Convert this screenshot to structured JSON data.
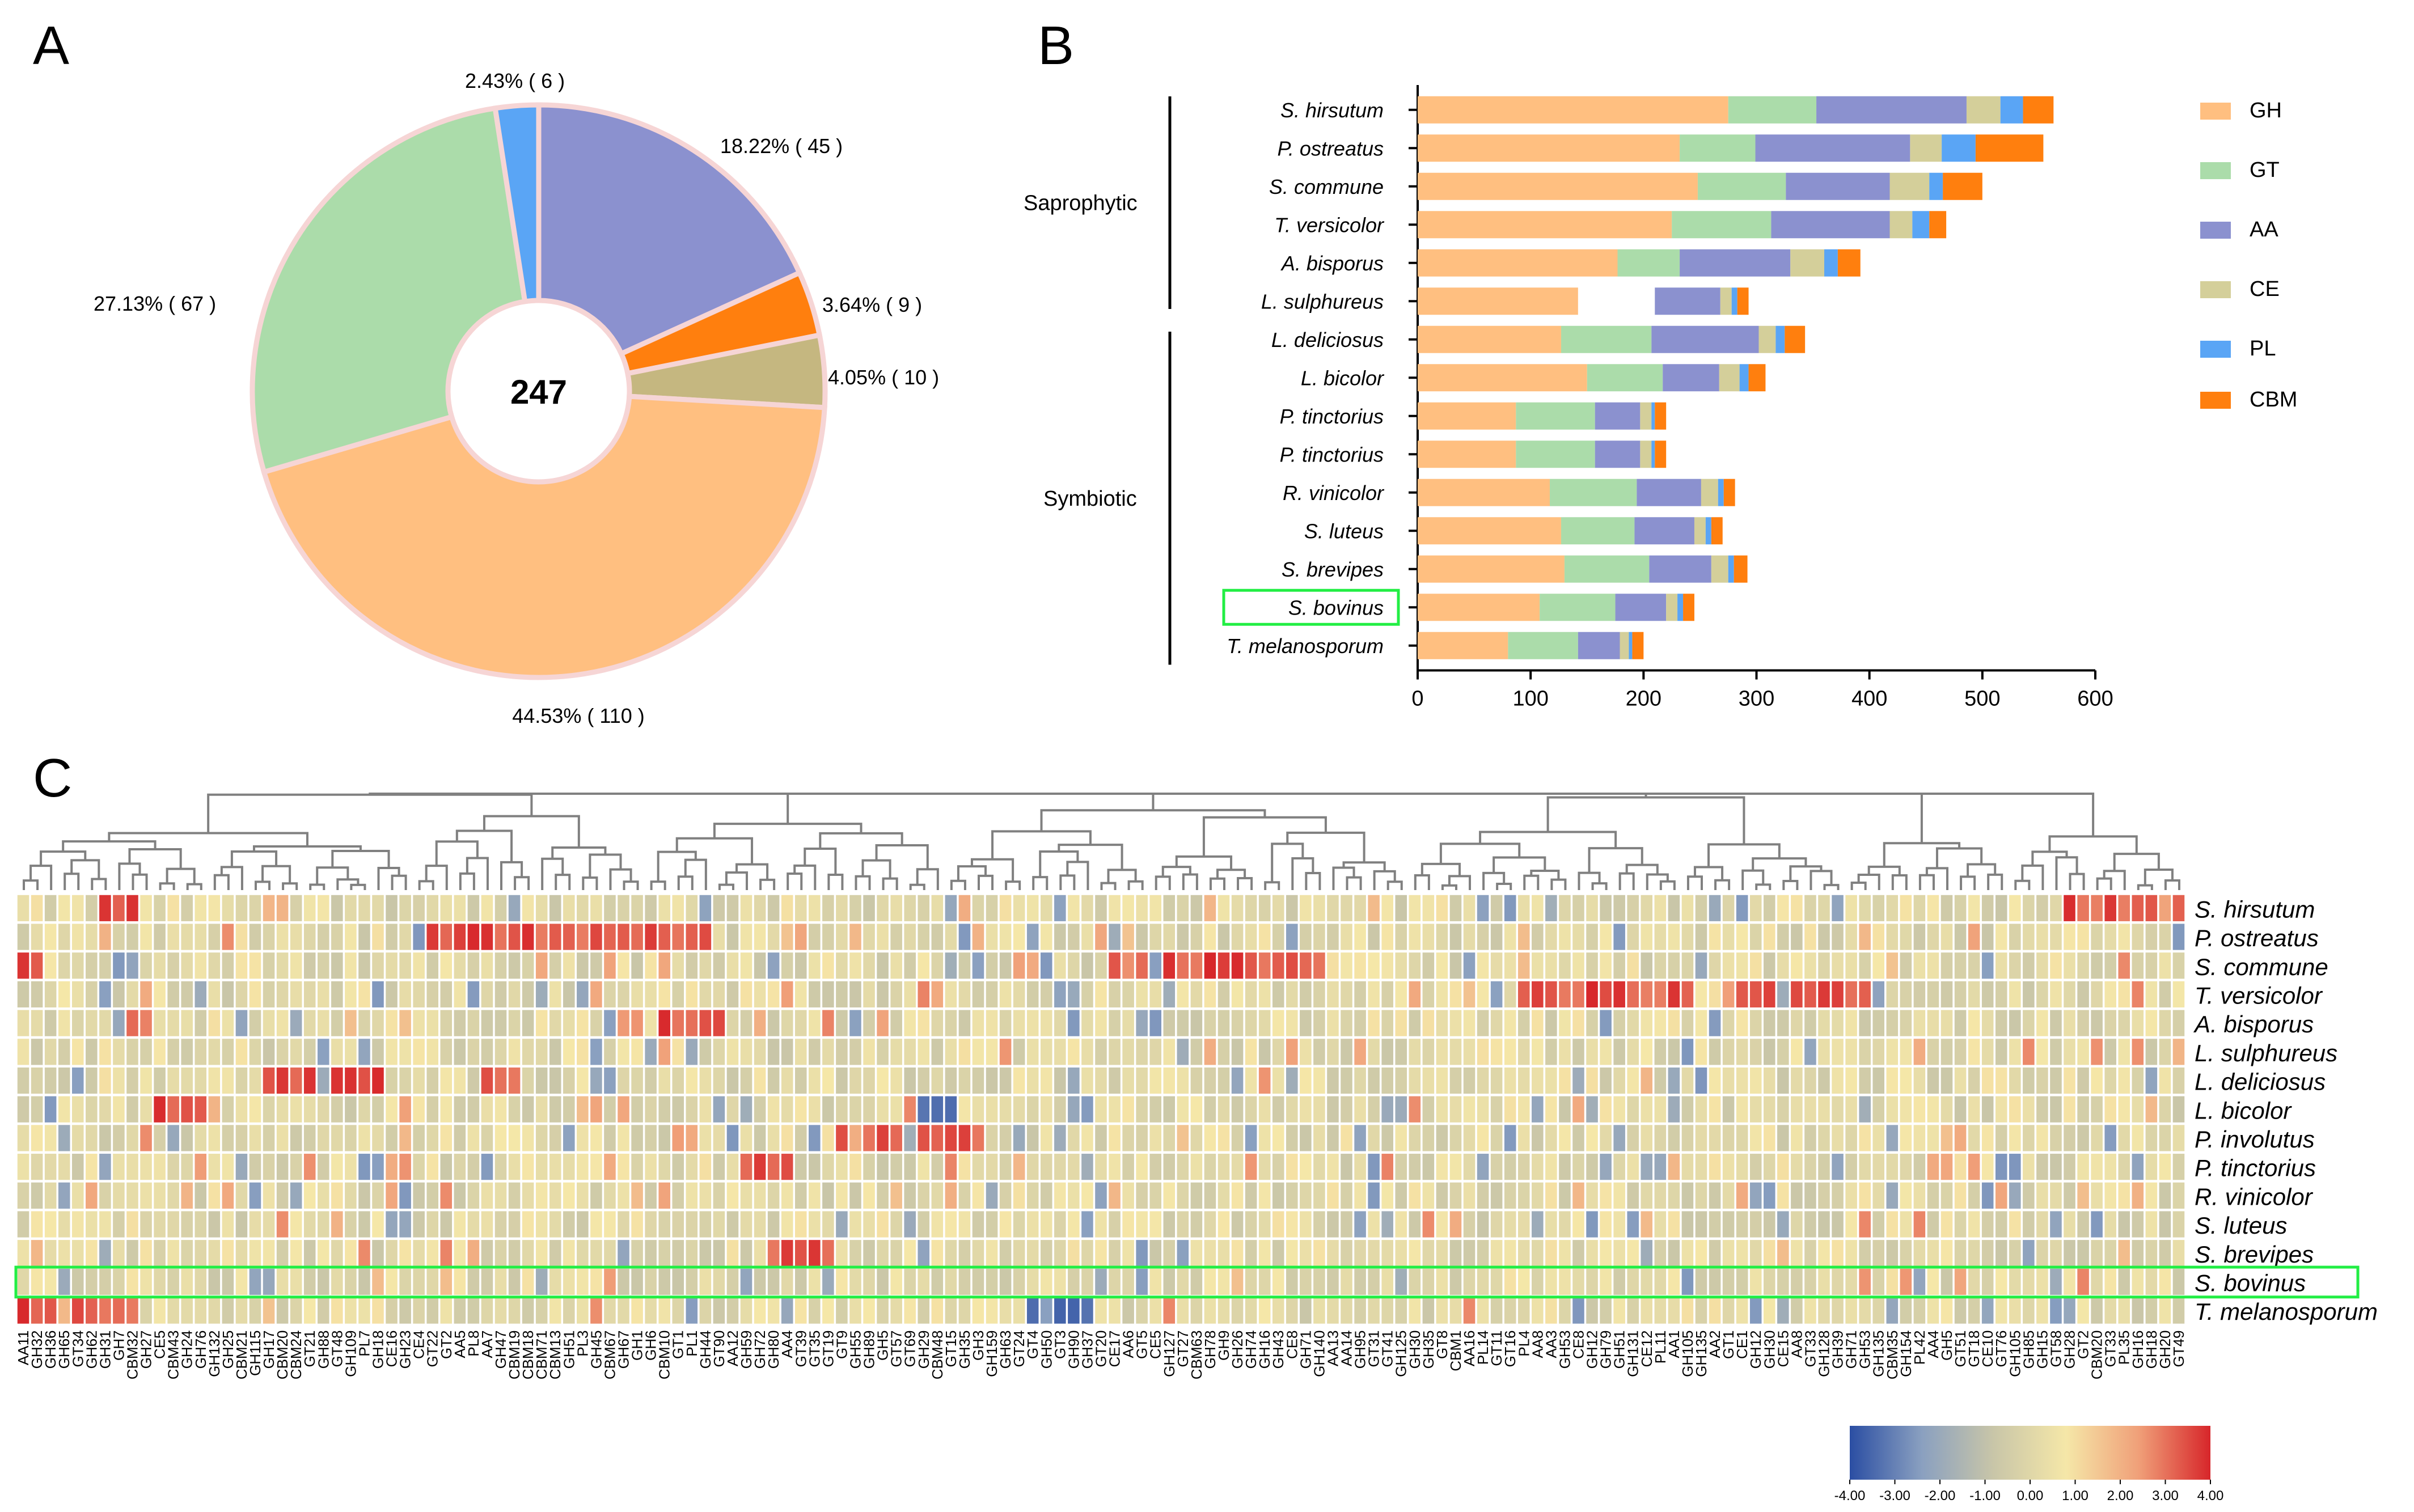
{
  "panel_labels": [
    "A",
    "B",
    "C"
  ],
  "chart_data": [
    {
      "type": "pie",
      "panel": "A",
      "center_label": "247",
      "slices": [
        {
          "name": "AA",
          "value": 45,
          "label": "18.22% ( 45 )",
          "color": "#8b91cf"
        },
        {
          "name": "CBM",
          "value": 9,
          "label": "3.64% ( 9 )",
          "color": "#ff7f0e"
        },
        {
          "name": "CE",
          "value": 10,
          "label": "4.05% ( 10 )",
          "color": "#c5b780"
        },
        {
          "name": "GH",
          "value": 110,
          "label": "44.53% ( 110 )",
          "color": "#ffbf80"
        },
        {
          "name": "GT",
          "value": 67,
          "label": "27.13% ( 67 )",
          "color": "#abdcaa"
        },
        {
          "name": "PL",
          "value": 6,
          "label": "2.43% ( 6 )",
          "color": "#5aa5f5"
        }
      ]
    },
    {
      "type": "bar",
      "panel": "B",
      "orientation": "horizontal",
      "stacked": true,
      "xlim": [
        0,
        600
      ],
      "xticks": [
        "0",
        "100",
        "200",
        "300",
        "400",
        "500",
        "600"
      ],
      "groups": [
        {
          "label": "Saprophytic",
          "species": [
            "S. hirsutum",
            "P. ostreatus",
            "S. commune",
            "T. versicolor",
            "A. bisporus",
            "L. sulphureus"
          ]
        },
        {
          "label": "Symbiotic",
          "species": [
            "L. deliciosus",
            "L. bicolor",
            "P. tinctorius",
            "P. tinctorius",
            "R. vinicolor",
            "S. luteus",
            "S. brevipes",
            "S. bovinus",
            "T. melanosporum"
          ]
        }
      ],
      "highlight": "S. bovinus",
      "highlight_color": "#22ee44",
      "categories": [
        "S. hirsutum",
        "P. ostreatus",
        "S. commune",
        "T. versicolor",
        "A. bisporus",
        "L. sulphureus",
        "L. deliciosus",
        "L. bicolor",
        "P. tinctorius",
        "P. tinctorius",
        "R. vinicolor",
        "S. luteus",
        "S. brevipes",
        "S. bovinus",
        "T. melanosporum"
      ],
      "series": [
        {
          "name": "GH",
          "color": "#ffbf80",
          "values": [
            275,
            232,
            248,
            225,
            177,
            142,
            127,
            150,
            87,
            87,
            117,
            127,
            130,
            108,
            80
          ]
        },
        {
          "name": "GT",
          "color": "#abdcaa",
          "values": [
            78,
            67,
            78,
            88,
            55,
            0,
            80,
            67,
            70,
            70,
            77,
            65,
            75,
            67,
            62
          ]
        },
        {
          "name": "AA",
          "color": "#8b91cf",
          "values": [
            133,
            137,
            92,
            105,
            98,
            58,
            95,
            50,
            40,
            40,
            57,
            53,
            55,
            45,
            37
          ]
        },
        {
          "name": "CE",
          "color": "#d4cf9a",
          "values": [
            30,
            28,
            35,
            20,
            30,
            10,
            15,
            18,
            10,
            10,
            15,
            10,
            15,
            10,
            8
          ]
        },
        {
          "name": "PL",
          "color": "#5aa5f5",
          "values": [
            20,
            30,
            12,
            15,
            12,
            5,
            8,
            8,
            3,
            3,
            5,
            5,
            5,
            5,
            3
          ]
        },
        {
          "name": "CBM",
          "color": "#ff7f0e",
          "values": [
            27,
            60,
            35,
            15,
            20,
            10,
            18,
            15,
            10,
            10,
            10,
            10,
            12,
            10,
            10
          ]
        }
      ],
      "gap_bar": {
        "category": "L. sulphureus",
        "start_after_series": "GH",
        "gap_to": 210
      }
    },
    {
      "type": "heatmap",
      "panel": "C",
      "rows": [
        "S. hirsutum",
        "P. ostreatus",
        "S. commune",
        "T. versicolor",
        "A. bisporus",
        "L. sulphureus",
        "L. deliciosus",
        "L. bicolor",
        "P. involutus",
        "P. tinctorius",
        "R. vinicolor",
        "S. luteus",
        "S. brevipes",
        "S. bovinus",
        "T. melanosporum"
      ],
      "highlight_row": "S. bovinus",
      "highlight_color": "#22ee44",
      "columns": [
        "AA11",
        "GH32",
        "GH36",
        "GH65",
        "GT34",
        "GH62",
        "GH31",
        "GH7",
        "CBM32",
        "GH27",
        "CE5",
        "CBM43",
        "GH24",
        "GH76",
        "GH132",
        "GH25",
        "CBM21",
        "GH115",
        "GH17",
        "CBM20",
        "CBM24",
        "GT21",
        "GH88",
        "GT48",
        "GH109",
        "PL7",
        "GH18",
        "CE16",
        "GH23",
        "CE4",
        "GT22",
        "GT2",
        "AA5",
        "PL8",
        "AA7",
        "GH47",
        "CBM19",
        "CBM18",
        "CBM71",
        "CBM13",
        "GH51",
        "PL3",
        "GH45",
        "CBM67",
        "GH67",
        "GH1",
        "GH6",
        "CBM10",
        "GT1",
        "PL1",
        "GH44",
        "GT90",
        "AA12",
        "GH59",
        "GH72",
        "GH80",
        "AA4",
        "GT39",
        "GT35",
        "GT19",
        "GT9",
        "GH55",
        "GH89",
        "GH5",
        "GT57",
        "GT69",
        "GH29",
        "CBM48",
        "GT15",
        "GH35",
        "GH3",
        "GH159",
        "GH63",
        "GT24",
        "GT4",
        "GH50",
        "GT3",
        "GH90",
        "GH37",
        "GT20",
        "CE17",
        "AA6",
        "GT5",
        "CE5",
        "GH127",
        "GT27",
        "CBM63",
        "GH78",
        "GH9",
        "GH26",
        "GH74",
        "GH16",
        "GH43",
        "CE8",
        "GH71",
        "GH140",
        "AA13",
        "AA14",
        "GH95",
        "GT31",
        "GT41",
        "GH125",
        "GH30",
        "GH35",
        "GT8",
        "CBM1",
        "AA16",
        "PL14",
        "GT11",
        "GT16",
        "PL4",
        "AA8",
        "AA3",
        "GH53",
        "CE8",
        "GH12",
        "GH79",
        "GH51",
        "GH131",
        "CE12",
        "PL11",
        "AA1",
        "GH105",
        "GH135",
        "AA2",
        "GT1",
        "CE1",
        "GH12",
        "GH30",
        "CE15",
        "AA8",
        "GT33",
        "GH128",
        "GH39",
        "GH71",
        "GH53",
        "GH135",
        "CBM35",
        "GH154",
        "PL42",
        "AA4",
        "GH5",
        "GT51",
        "GT18",
        "CE10",
        "GT76",
        "GH105",
        "GH85",
        "GH15",
        "GT58",
        "GH28",
        "GT2",
        "CBM20",
        "GT33",
        "PL35",
        "GH16",
        "GH18",
        "GH20",
        "GT49"
      ],
      "scale": {
        "min": -4,
        "max": 4,
        "ticks": [
          "-4.00",
          "-3.00",
          "-2.00",
          "-1.00",
          "0.00",
          "1.00",
          "2.00",
          "3.00",
          "4.00"
        ],
        "colors": [
          "#2b4ea3",
          "#8aa0c0",
          "#c9c6a8",
          "#f5e7a8",
          "#f0a079",
          "#d7262a"
        ]
      },
      "values_note": "z-score per column; approximated from image"
    }
  ]
}
